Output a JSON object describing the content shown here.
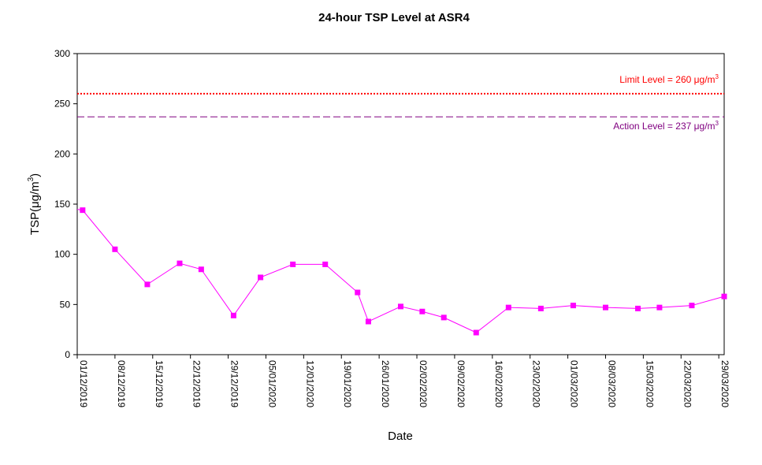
{
  "chart_data": {
    "type": "line",
    "title": "24-hour TSP Level at ASR4",
    "xlabel": "Date",
    "ylabel_main": "TSP(",
    "ylabel_unit": "μg/m",
    "ylabel_sup": "3",
    "ylabel_close": ")",
    "ylim": [
      0,
      300
    ],
    "yticks": [
      0,
      50,
      100,
      150,
      200,
      250,
      300
    ],
    "xlim": [
      "2019-12-01",
      "2020-03-30"
    ],
    "xticks": [
      "01/12/2019",
      "08/12/2019",
      "15/12/2019",
      "22/12/2019",
      "29/12/2019",
      "05/01/2020",
      "12/01/2020",
      "19/01/2020",
      "26/01/2020",
      "02/02/2020",
      "09/02/2020",
      "16/02/2020",
      "23/02/2020",
      "01/03/2020",
      "08/03/2020",
      "15/03/2020",
      "22/03/2020",
      "29/03/2020"
    ],
    "grid": false,
    "series": [
      {
        "color": "#ff00ff",
        "marker": "square",
        "x": [
          "2019-12-02",
          "2019-12-08",
          "2019-12-14",
          "2019-12-20",
          "2019-12-24",
          "2019-12-30",
          "2020-01-04",
          "2020-01-10",
          "2020-01-16",
          "2020-01-22",
          "2020-01-24",
          "2020-01-30",
          "2020-02-03",
          "2020-02-07",
          "2020-02-13",
          "2020-02-19",
          "2020-02-25",
          "2020-03-02",
          "2020-03-08",
          "2020-03-14",
          "2020-03-18",
          "2020-03-24",
          "2020-03-30"
        ],
        "y": [
          144,
          105,
          70,
          91,
          85,
          39,
          77,
          90,
          90,
          62,
          33,
          48,
          43,
          37,
          22,
          47,
          46,
          49,
          47,
          46,
          47,
          49,
          58
        ]
      }
    ],
    "reference_lines": [
      {
        "label_text": "Limit Level  = 260 ",
        "unit": "μg/m",
        "sup": "3",
        "value": 260,
        "color": "#ff0000",
        "style": "dotted"
      },
      {
        "label_text": "Action Level  = 237 ",
        "unit": "μg/m",
        "sup": "3",
        "value": 237,
        "color": "#800080",
        "style": "dashed"
      }
    ]
  }
}
